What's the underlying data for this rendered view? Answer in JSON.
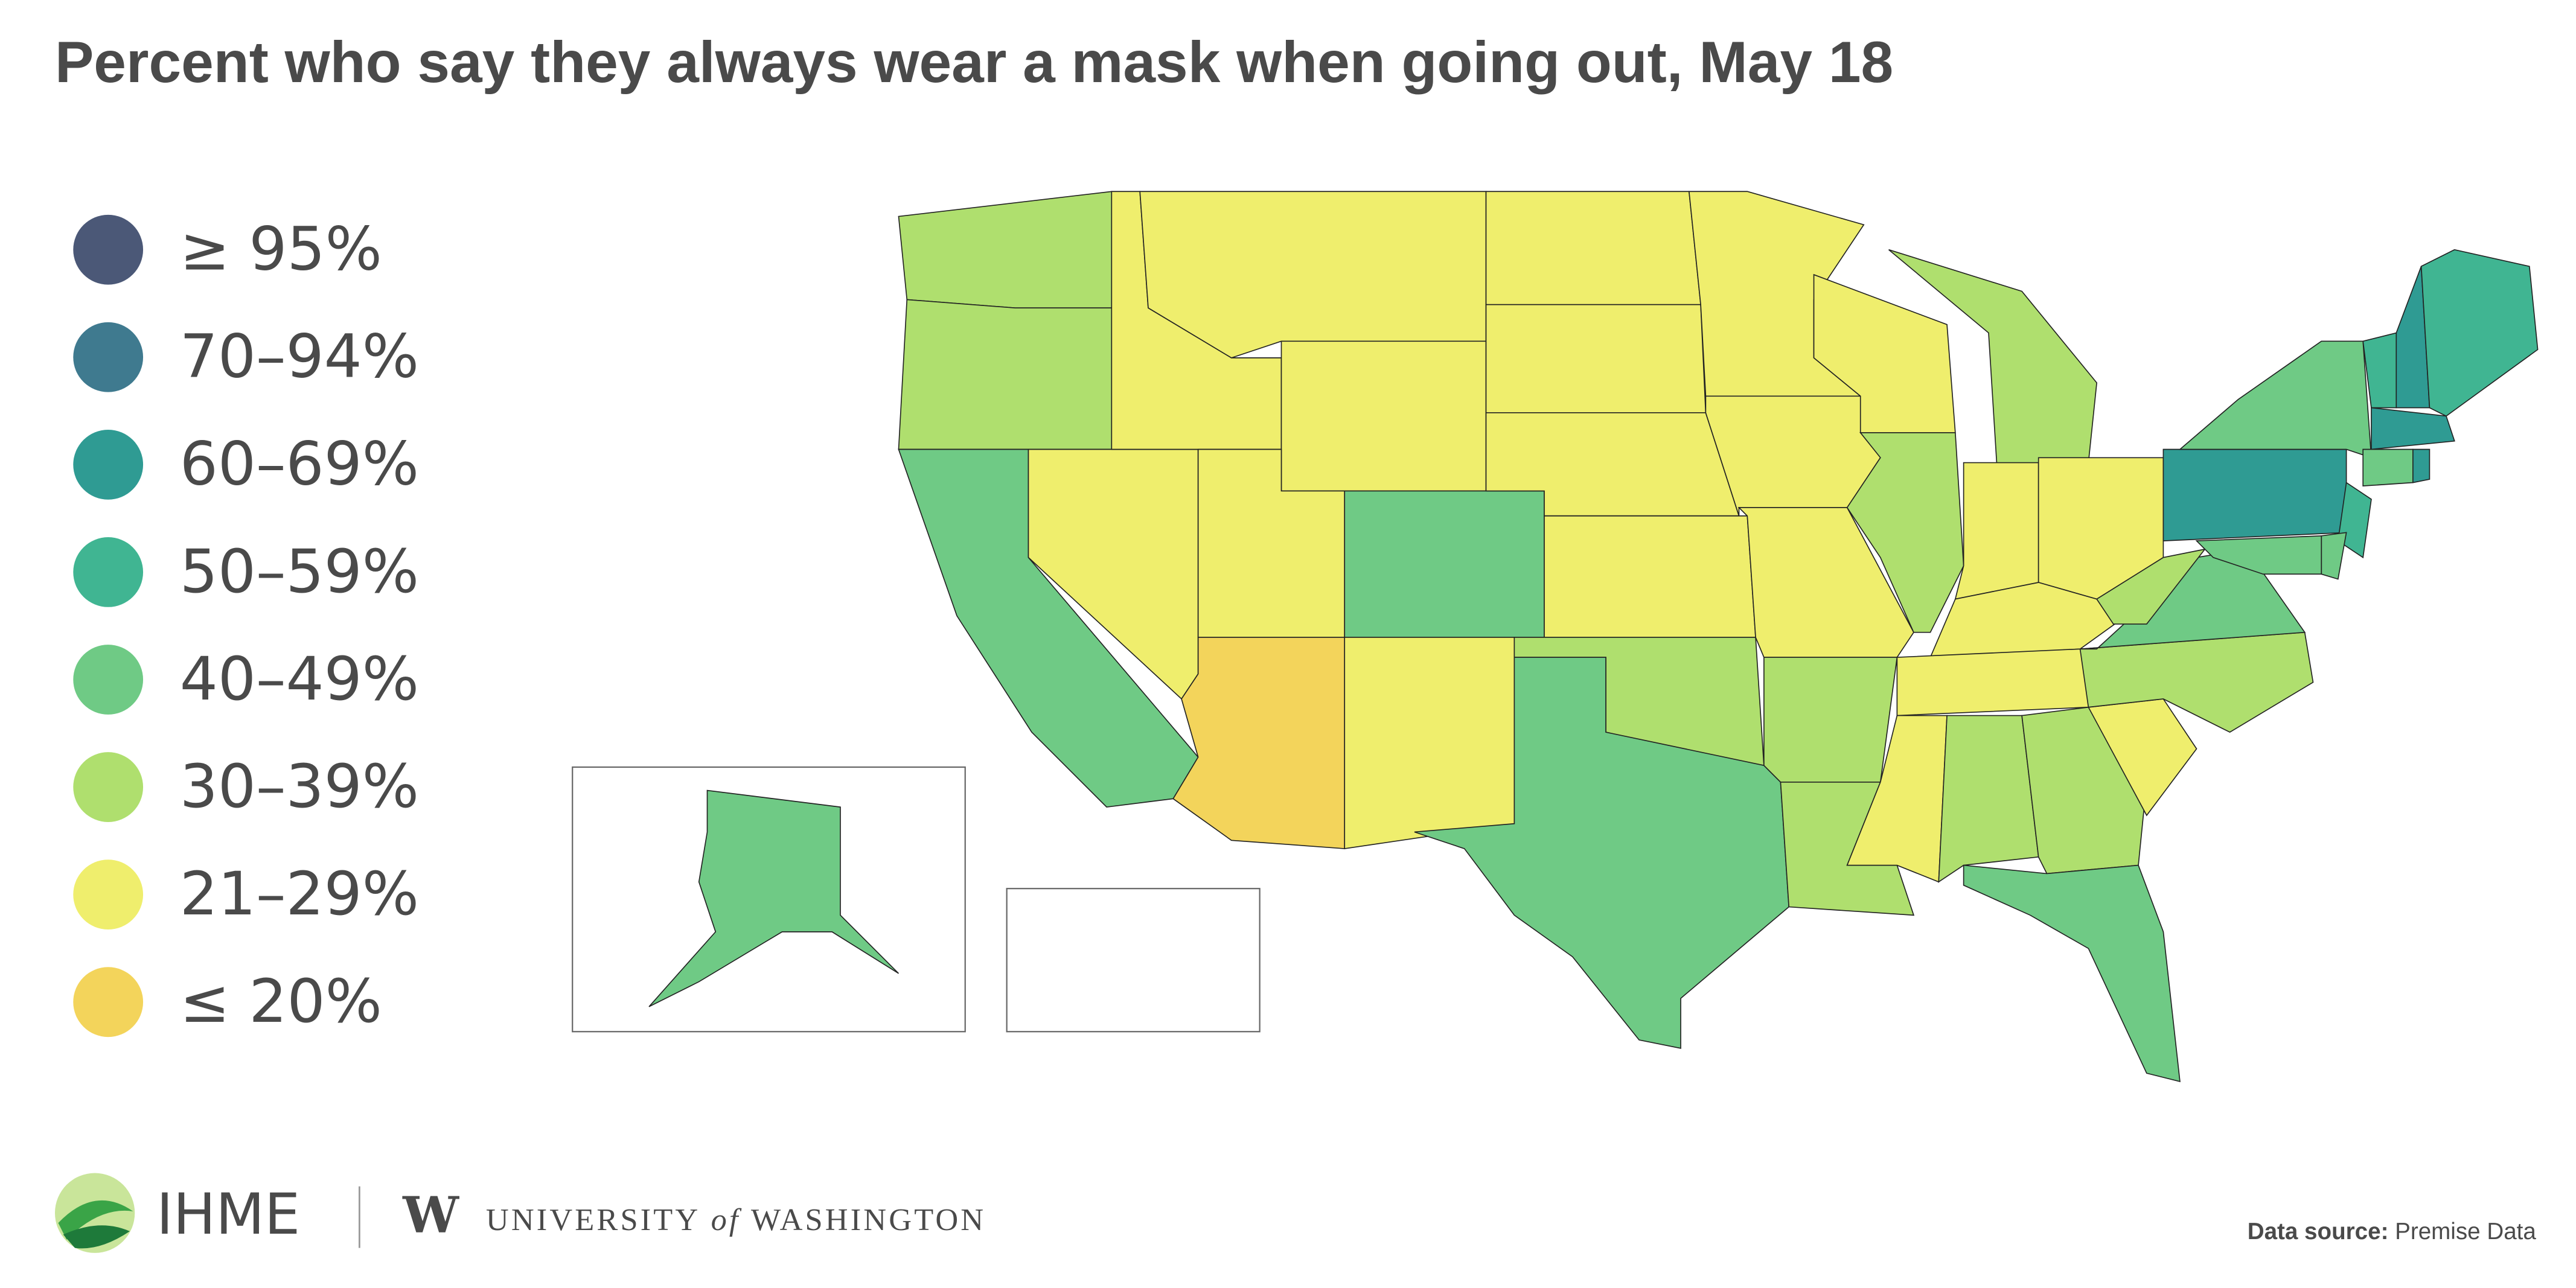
{
  "header": {
    "title": "Percent who say they always wear a mask when going out, May 18"
  },
  "legend": {
    "items": [
      {
        "label": "≥ 95%",
        "color": "#4b5877"
      },
      {
        "label": "70–94%",
        "color": "#3f7a8f"
      },
      {
        "label": "60–69%",
        "color": "#2f9b93"
      },
      {
        "label": "50–59%",
        "color": "#40b592"
      },
      {
        "label": "40–49%",
        "color": "#6fca85"
      },
      {
        "label": "30–39%",
        "color": "#afdf6e"
      },
      {
        "label": "21–29%",
        "color": "#efee6d"
      },
      {
        "label": "≤ 20%",
        "color": "#f3d45b"
      }
    ]
  },
  "map": {
    "regions": [
      5,
      5,
      4,
      6,
      6,
      6,
      6,
      6,
      7,
      4,
      6,
      6,
      6,
      6,
      6,
      5,
      4,
      6,
      6,
      6,
      5,
      5,
      6,
      5,
      5,
      6,
      6,
      6,
      6,
      6,
      5,
      5,
      4,
      6,
      5,
      4,
      5,
      2,
      4,
      3,
      2,
      3,
      2,
      4,
      2,
      3,
      4,
      4,
      4
    ]
  },
  "footer": {
    "org": "IHME",
    "uw_mark": "W",
    "university": "UNIVERSITY",
    "of": "of",
    "washington": "WASHINGTON",
    "source_label": "Data source:",
    "source": "Premise Data"
  }
}
